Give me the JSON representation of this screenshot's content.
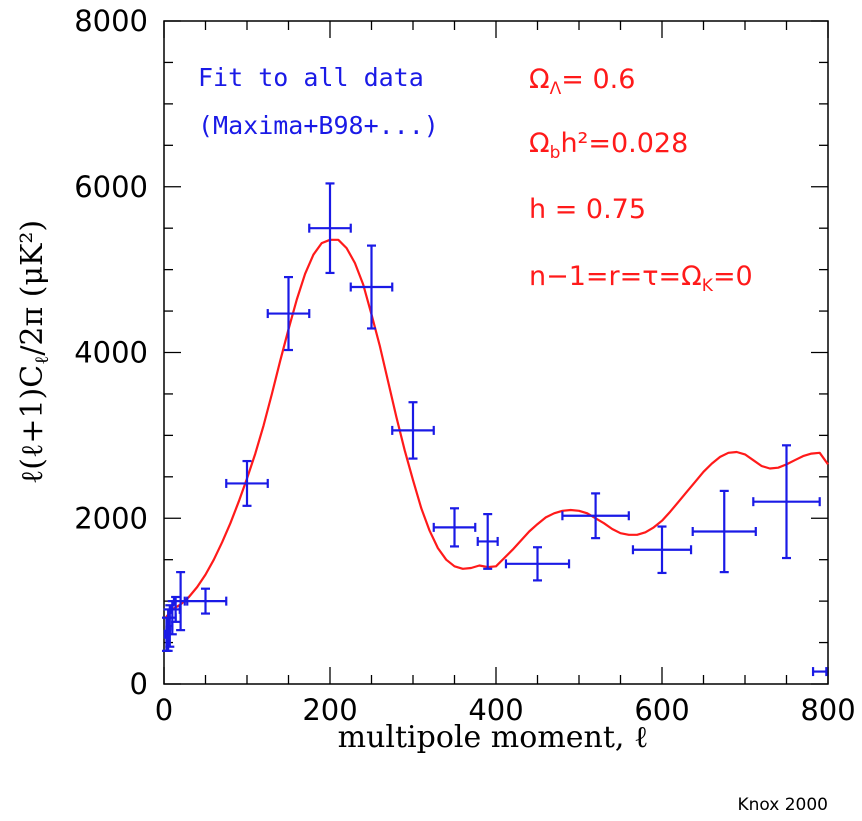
{
  "chart_data": {
    "type": "scatter",
    "xlabel": "multipole moment, ℓ",
    "ylabel": "ℓ(ℓ+1)C",
    "ylabel_sub": "ℓ",
    "ylabel_tail": "/2π  (μK²)",
    "xlim": [
      0,
      800
    ],
    "ylim": [
      0,
      8000
    ],
    "x_ticks": [
      0,
      200,
      400,
      600,
      800
    ],
    "y_ticks": [
      0,
      2000,
      4000,
      6000,
      8000
    ],
    "x_tick_labels": [
      "0",
      "200",
      "400",
      "600",
      "800"
    ],
    "y_tick_labels": [
      "0",
      "2000",
      "4000",
      "6000",
      "8000"
    ],
    "grid": false,
    "annotation_blue": [
      "Fit to all data",
      "(Maxima+B98+...)"
    ],
    "annotation_red": [
      {
        "main": "Ω",
        "sub": "Λ",
        "rest": "= 0.6"
      },
      {
        "main": "Ω",
        "sub": "b",
        "rest": "h²=0.028"
      },
      {
        "main": "h = 0.75",
        "sub": "",
        "rest": ""
      },
      {
        "main": "n−1=r=τ=Ω",
        "sub": "K",
        "rest": "=0"
      }
    ],
    "credit": "Knox 2000",
    "colors": {
      "data": "#1a1ae6",
      "model": "#ff1a1a"
    },
    "series": [
      {
        "name": "data",
        "points": [
          {
            "x": 3,
            "y": 600,
            "xerr": 2,
            "yerr": 200
          },
          {
            "x": 5,
            "y": 650,
            "xerr": 2,
            "yerr": 250
          },
          {
            "x": 7,
            "y": 700,
            "xerr": 3,
            "yerr": 250
          },
          {
            "x": 10,
            "y": 800,
            "xerr": 4,
            "yerr": 200
          },
          {
            "x": 14,
            "y": 900,
            "xerr": 5,
            "yerr": 150
          },
          {
            "x": 20,
            "y": 1000,
            "xerr": 8,
            "yerr": 350
          },
          {
            "x": 50,
            "y": 1000,
            "xerr": 25,
            "yerr": 150
          },
          {
            "x": 100,
            "y": 2420,
            "xerr": 25,
            "yerr": 270
          },
          {
            "x": 150,
            "y": 4470,
            "xerr": 25,
            "yerr": 440
          },
          {
            "x": 200,
            "y": 5500,
            "xerr": 25,
            "yerr": 540
          },
          {
            "x": 250,
            "y": 4790,
            "xerr": 25,
            "yerr": 500
          },
          {
            "x": 300,
            "y": 3060,
            "xerr": 25,
            "yerr": 340
          },
          {
            "x": 350,
            "y": 1890,
            "xerr": 25,
            "yerr": 230
          },
          {
            "x": 390,
            "y": 1720,
            "xerr": 12,
            "yerr": 330
          },
          {
            "x": 450,
            "y": 1450,
            "xerr": 38,
            "yerr": 200
          },
          {
            "x": 520,
            "y": 2030,
            "xerr": 40,
            "yerr": 270
          },
          {
            "x": 600,
            "y": 1620,
            "xerr": 35,
            "yerr": 280
          },
          {
            "x": 675,
            "y": 1840,
            "xerr": 38,
            "yerr": 490
          },
          {
            "x": 750,
            "y": 2200,
            "xerr": 40,
            "yerr": 680
          },
          {
            "x": 790,
            "y": 150,
            "xerr": 8,
            "yerr": 0
          }
        ]
      },
      {
        "name": "model",
        "x": [
          2,
          10,
          20,
          30,
          40,
          50,
          60,
          70,
          80,
          90,
          100,
          110,
          120,
          130,
          140,
          150,
          160,
          170,
          180,
          190,
          200,
          210,
          220,
          230,
          240,
          250,
          260,
          270,
          280,
          290,
          300,
          310,
          320,
          330,
          340,
          350,
          360,
          370,
          380,
          390,
          400,
          410,
          420,
          430,
          440,
          450,
          460,
          470,
          480,
          490,
          500,
          510,
          520,
          530,
          540,
          550,
          560,
          570,
          580,
          590,
          600,
          610,
          620,
          630,
          640,
          650,
          660,
          670,
          680,
          690,
          700,
          710,
          720,
          730,
          740,
          750,
          760,
          770,
          780,
          790,
          800
        ],
        "y": [
          800,
          900,
          960,
          1050,
          1170,
          1320,
          1500,
          1710,
          1940,
          2200,
          2480,
          2780,
          3120,
          3500,
          3900,
          4280,
          4640,
          4950,
          5180,
          5320,
          5360,
          5360,
          5260,
          5080,
          4820,
          4460,
          4080,
          3650,
          3220,
          2820,
          2460,
          2120,
          1850,
          1640,
          1500,
          1420,
          1390,
          1400,
          1430,
          1410,
          1420,
          1520,
          1620,
          1730,
          1840,
          1930,
          2010,
          2060,
          2090,
          2100,
          2090,
          2060,
          2000,
          1940,
          1870,
          1820,
          1800,
          1800,
          1830,
          1890,
          1970,
          2080,
          2200,
          2320,
          2440,
          2560,
          2660,
          2740,
          2790,
          2800,
          2770,
          2700,
          2630,
          2600,
          2610,
          2650,
          2700,
          2750,
          2780,
          2790,
          2650
        ]
      }
    ]
  }
}
